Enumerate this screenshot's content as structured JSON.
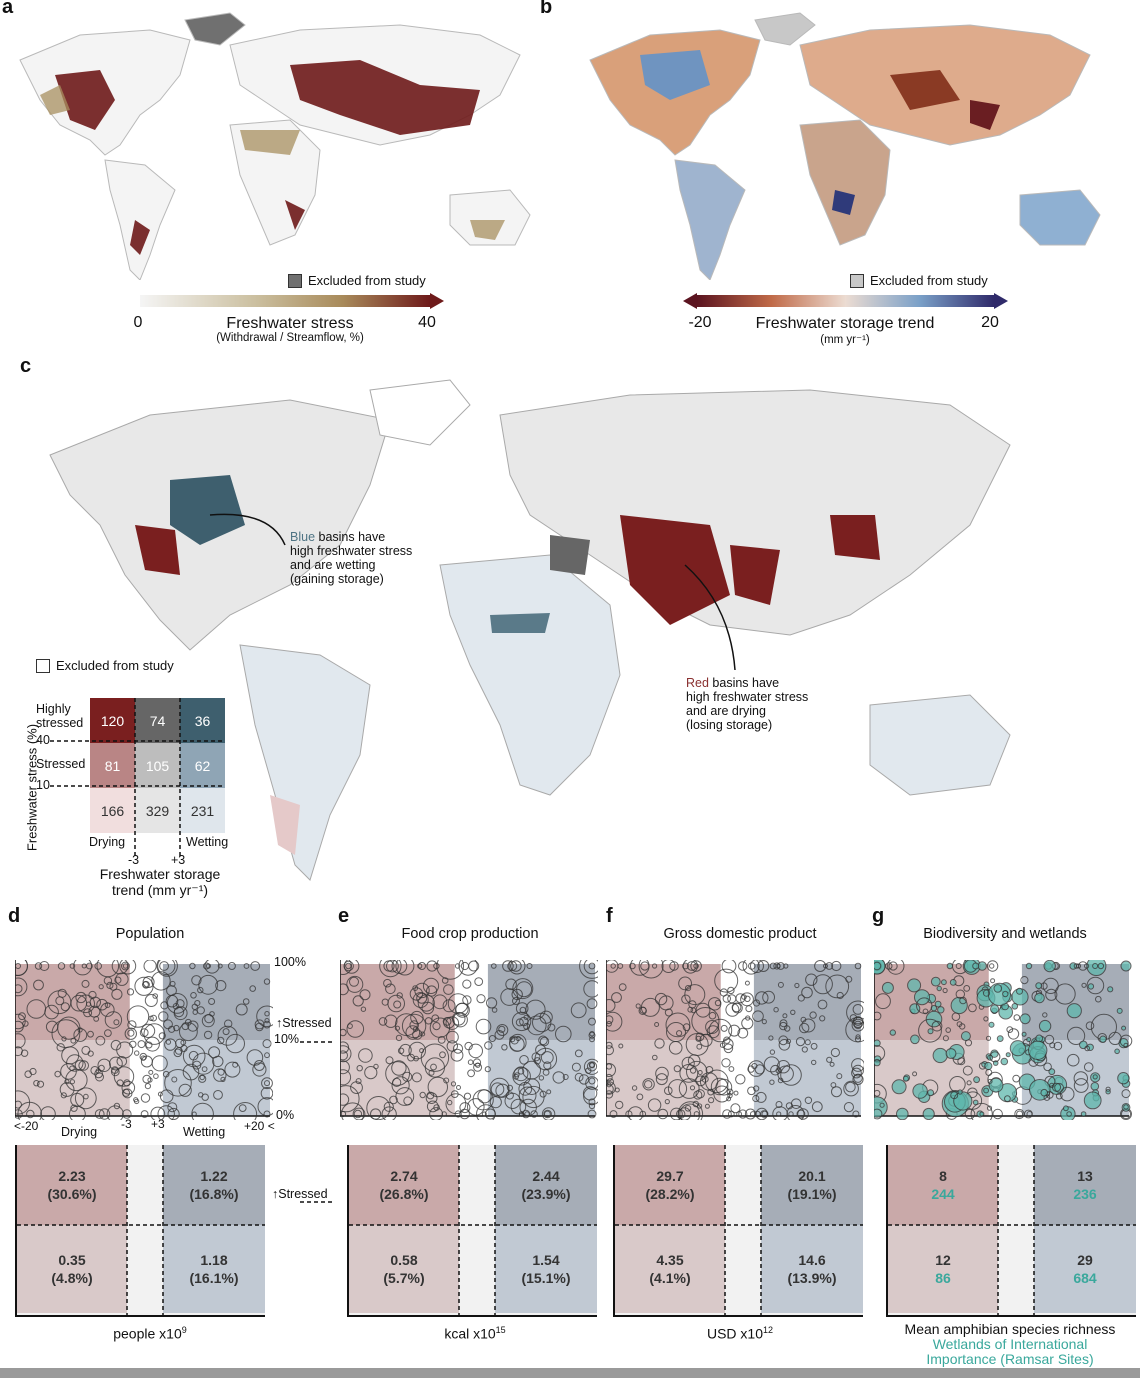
{
  "panels": {
    "a": {
      "label": "a",
      "excluded": "Excluded from study",
      "cbar_min": "0",
      "cbar_max": "40",
      "cbar_title": "Freshwater stress",
      "cbar_sub": "(Withdrawal / Streamflow, %)",
      "colors": {
        "low": "#f5f5f5",
        "mid": "#a89060",
        "high": "#6e1a1a",
        "excluded": "#707070"
      }
    },
    "b": {
      "label": "b",
      "excluded": "Excluded from study",
      "cbar_min": "-20",
      "cbar_max": "20",
      "cbar_title": "Freshwater storage trend",
      "cbar_sub": "(mm yr⁻¹)",
      "colors": {
        "low": "#5b1420",
        "mid": "#e9d8cf",
        "high": "#2f2a6a",
        "excluded": "#c8c8c8"
      }
    },
    "c": {
      "label": "c",
      "excluded": "Excluded from study",
      "blue_word": "Blue",
      "blue_note": [
        " basins have",
        "high freshwater stress",
        "and are wetting",
        "(gaining storage)"
      ],
      "red_word": "Red",
      "red_note": [
        " basins have",
        "high freshwater stress",
        "and are drying",
        "(losing storage)"
      ],
      "y_title": "Freshwater stress (%)",
      "row_labels": [
        "Highly stressed",
        "Stressed",
        ""
      ],
      "row_label_hs1": "Highly",
      "row_label_hs2": "stressed",
      "row_label_s": "Stressed",
      "thresholds": [
        "40",
        "10"
      ],
      "matrix": [
        [
          "120",
          "74",
          "36"
        ],
        [
          "81",
          "105",
          "62"
        ],
        [
          "166",
          "329",
          "231"
        ]
      ],
      "matrix_colors": [
        [
          "#7a1f1f",
          "#666666",
          "#3e5f6e"
        ],
        [
          "#b98585",
          "#bdbdbd",
          "#8fa5b5"
        ],
        [
          "#f1dede",
          "#e5e5e5",
          "#dfe6ec"
        ]
      ],
      "drying": "Drying",
      "wetting": "Wetting",
      "tick_m3": "-3",
      "tick_p3": "+3",
      "x_title_1": "Freshwater storage",
      "x_title_2": "trend (mm yr⁻¹)"
    },
    "d": {
      "label": "d",
      "title": "Population",
      "unit": "people x10",
      "unit_exp": "9",
      "y_100": "100%",
      "y_10": "10%",
      "y_0": "0%",
      "stressed": "Stressed",
      "x_left": "<-20",
      "x_m3": "-3",
      "x_p3": "+3",
      "x_right": "+20 <",
      "drying": "Drying",
      "wetting": "Wetting",
      "cells": {
        "tl": [
          "2.23",
          "(30.6%)"
        ],
        "tr": [
          "1.22",
          "(16.8%)"
        ],
        "bl": [
          "0.35",
          "(4.8%)"
        ],
        "br": [
          "1.18",
          "(16.1%)"
        ]
      }
    },
    "e": {
      "label": "e",
      "title": "Food crop production",
      "unit": "kcal x10",
      "unit_exp": "15",
      "cells": {
        "tl": [
          "2.74",
          "(26.8%)"
        ],
        "tr": [
          "2.44",
          "(23.9%)"
        ],
        "bl": [
          "0.58",
          "(5.7%)"
        ],
        "br": [
          "1.54",
          "(15.1%)"
        ]
      }
    },
    "f": {
      "label": "f",
      "title": "Gross domestic product",
      "unit": "USD x10",
      "unit_exp": "12",
      "cells": {
        "tl": [
          "29.7",
          "(28.2%)"
        ],
        "tr": [
          "20.1",
          "(19.1%)"
        ],
        "bl": [
          "4.35",
          "(4.1%)"
        ],
        "br": [
          "14.6",
          "(13.9%)"
        ]
      }
    },
    "g": {
      "label": "g",
      "title": "Biodiversity and wetlands",
      "unit_1": "Mean amphibian species richness",
      "unit_2": "Wetlands of International",
      "unit_3": "Importance (Ramsar Sites)",
      "cells": {
        "tl": [
          "8",
          "244"
        ],
        "tr": [
          "13",
          "236"
        ],
        "bl": [
          "12",
          "86"
        ],
        "br": [
          "29",
          "684"
        ]
      }
    }
  },
  "quadrant_colors": {
    "tl": "#c9a9a9",
    "tr": "#a6adb7",
    "bl": "#d9c9c9",
    "br": "#c1c9d3",
    "mid": "#f2f2f2"
  }
}
